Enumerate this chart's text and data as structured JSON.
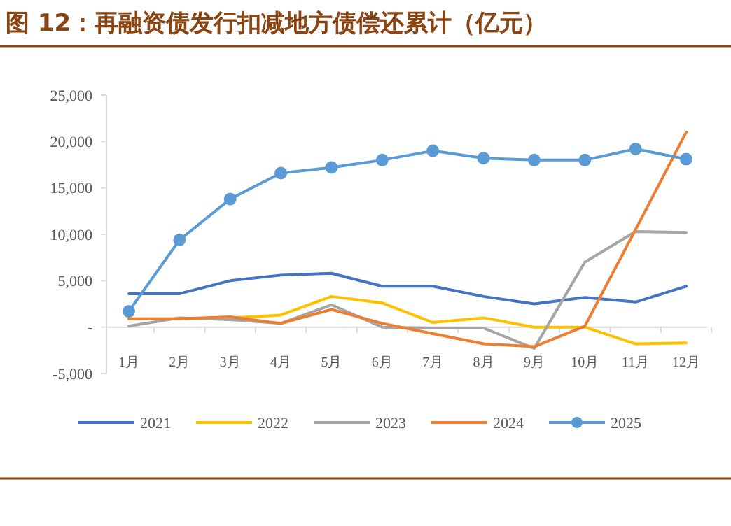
{
  "chart_data": {
    "type": "line",
    "title": "图 12：再融资债发行扣减地方债偿还累计（亿元）",
    "categories": [
      "1月",
      "2月",
      "3月",
      "4月",
      "5月",
      "6月",
      "7月",
      "8月",
      "9月",
      "10月",
      "11月",
      "12月"
    ],
    "series": [
      {
        "name": "2021",
        "color": "#4472c4",
        "marker": "none",
        "values": [
          3600,
          3600,
          5000,
          5600,
          5800,
          4400,
          4400,
          3300,
          2500,
          3200,
          2700,
          4400
        ]
      },
      {
        "name": "2022",
        "color": "#ffc000",
        "marker": "none",
        "values": [
          900,
          900,
          1000,
          1300,
          3300,
          2600,
          500,
          1000,
          0,
          0,
          -1800,
          -1700
        ]
      },
      {
        "name": "2023",
        "color": "#a5a5a5",
        "marker": "none",
        "values": [
          100,
          1000,
          800,
          400,
          2400,
          0,
          -100,
          -100,
          -2300,
          7000,
          10300,
          10200
        ]
      },
      {
        "name": "2024",
        "color": "#ed7d31",
        "marker": "none",
        "values": [
          900,
          900,
          1100,
          400,
          1900,
          400,
          -700,
          -1800,
          -2100,
          100,
          10500,
          21000
        ]
      },
      {
        "name": "2025",
        "color": "#5b9bd5",
        "marker": "circle",
        "values": [
          1700,
          9400,
          13800,
          16600,
          17200,
          18000,
          19000,
          18200,
          18000,
          18000,
          19200,
          18100
        ]
      }
    ],
    "ylim": [
      -5000,
      25000
    ],
    "yticks": [
      {
        "value": -5000,
        "label": "-5,000"
      },
      {
        "value": 0,
        "label": "-"
      },
      {
        "value": 5000,
        "label": "5,000"
      },
      {
        "value": 10000,
        "label": "10,000"
      },
      {
        "value": 15000,
        "label": "15,000"
      },
      {
        "value": 20000,
        "label": "20,000"
      },
      {
        "value": 25000,
        "label": "25,000"
      }
    ],
    "grid": false,
    "legend": "bottom"
  }
}
